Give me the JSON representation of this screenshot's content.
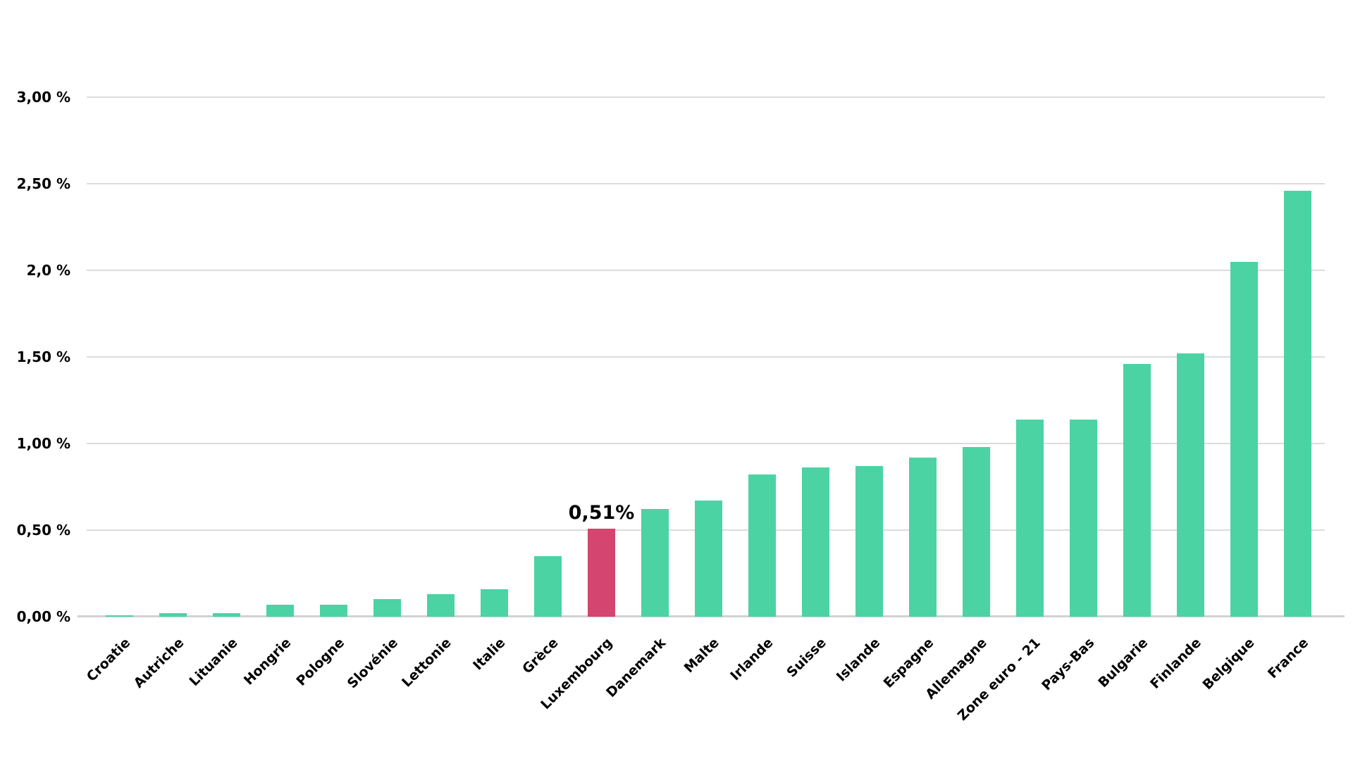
{
  "chart_data": {
    "type": "bar",
    "title": "",
    "xlabel": "",
    "ylabel": "",
    "categories": [
      "Croatie",
      "Autriche",
      "Lituanie",
      "Hongrie",
      "Pologne",
      "Slovénie",
      "Lettonie",
      "Italie",
      "Grèce",
      "Luxembourg",
      "Danemark",
      "Malte",
      "Irlande",
      "Suisse",
      "Islande",
      "Espagne",
      "Allemagne",
      "Zone euro - 21",
      "Pays-Bas",
      "Bulgarie",
      "Finlande",
      "Belgique",
      "France"
    ],
    "values": [
      0.01,
      0.02,
      0.02,
      0.07,
      0.07,
      0.1,
      0.13,
      0.16,
      0.35,
      0.51,
      0.62,
      0.67,
      0.82,
      0.86,
      0.87,
      0.92,
      0.98,
      1.14,
      1.14,
      1.46,
      1.52,
      2.05,
      2.46
    ],
    "unit": "%",
    "highlight_index": 9,
    "highlight_label": "0,51%",
    "bar_color": "#4bd3a4",
    "highlight_color": "#d4456f",
    "grid": true,
    "gridline_color": "#dcdcdc",
    "axis_line_color": "#d2d2d2",
    "text_color": "#000000",
    "ylim": [
      0,
      3.0
    ],
    "y_ticks": [
      {
        "label": "3,00 %",
        "value": 3.0
      },
      {
        "label": "2,50 %",
        "value": 2.5
      },
      {
        "label": "2,0 %",
        "value": 2.0
      },
      {
        "label": "1,50 %",
        "value": 1.5
      },
      {
        "label": "1,00 %",
        "value": 1.0
      },
      {
        "label": "0,50 %",
        "value": 0.5
      },
      {
        "label": "0,00 %",
        "value": 0.0
      }
    ],
    "x_label_rotation_deg": -45,
    "legend": null
  }
}
